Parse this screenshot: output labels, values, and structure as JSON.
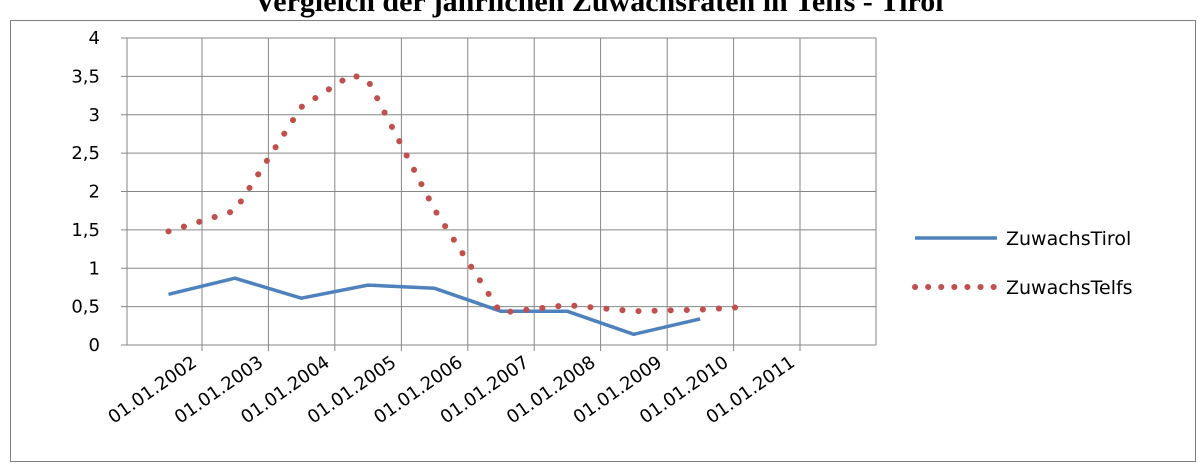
{
  "title": "Vergleich der jährlichen Zuwachsraten in Telfs - Tirol",
  "chart_data": {
    "type": "line",
    "title": "Vergleich der jährlichen Zuwachsraten in Telfs - Tirol",
    "xlabel": "",
    "ylabel": "",
    "ylim": [
      0,
      4
    ],
    "xlim": [
      "01.01.2002",
      "01.01.2011"
    ],
    "y_ticks": [
      "0",
      "0,5",
      "1",
      "1,5",
      "2",
      "2,5",
      "3",
      "3,5",
      "4"
    ],
    "x_ticks": [
      "01.01.2002",
      "01.01.2003",
      "01.01.2004",
      "01.01.2005",
      "01.01.2006",
      "01.01.2007",
      "01.01.2008",
      "01.01.2009",
      "01.01.2010",
      "01.01.2011"
    ],
    "grid": true,
    "legend_position": "right",
    "series": [
      {
        "name": "ZuwachsTirol",
        "style": "solid",
        "color": "#4f81bd",
        "points": [
          [
            "01.07.2001",
            0.66
          ],
          [
            "01.07.2002",
            0.87
          ],
          [
            "01.07.2003",
            0.61
          ],
          [
            "01.07.2004",
            0.78
          ],
          [
            "01.07.2005",
            0.74
          ],
          [
            "01.07.2006",
            0.44
          ],
          [
            "01.07.2007",
            0.44
          ],
          [
            "01.07.2008",
            0.14
          ],
          [
            "01.07.2009",
            0.34
          ]
        ]
      },
      {
        "name": "ZuwachsTelfs",
        "style": "dotted",
        "color": "#c0504d",
        "points": [
          [
            "01.07.2001",
            1.48
          ],
          [
            "01.07.2002",
            1.75
          ],
          [
            "01.07.2003",
            3.1
          ],
          [
            "01.04.2004",
            3.52
          ],
          [
            "01.07.2004",
            3.45
          ],
          [
            "01.07.2005",
            1.77
          ],
          [
            "01.07.2006",
            0.42
          ],
          [
            "01.07.2007",
            0.52
          ],
          [
            "01.07.2008",
            0.44
          ],
          [
            "01.07.2009",
            0.46
          ],
          [
            "01.04.2010",
            0.5
          ]
        ]
      }
    ]
  }
}
